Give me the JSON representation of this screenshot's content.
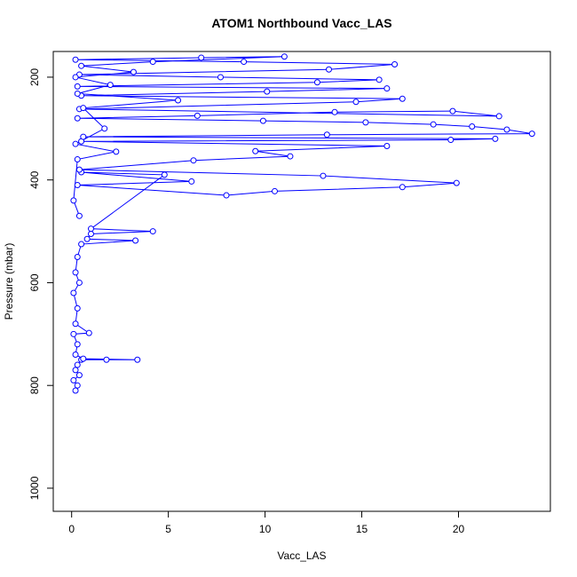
{
  "chart_data": {
    "type": "line",
    "title": "ATOM1 Northbound Vacc_LAS",
    "x_label": "Vacc_LAS",
    "y_label": "Pressure (mbar)",
    "xlim": [
      -0.95,
      24.75
    ],
    "ylim": [
      1045,
      150
    ],
    "xticks": [
      0,
      5,
      10,
      15,
      20
    ],
    "yticks": [
      200,
      400,
      600,
      800,
      1000
    ],
    "series": [
      {
        "color": "#0000ff",
        "x": [
          0.2,
          0.3,
          0.1,
          0.4,
          0.2,
          0.3,
          0.5,
          1.8,
          3.4,
          0.6,
          0.2,
          0.3,
          0.1,
          0.9,
          0.2,
          0.3,
          0.1,
          0.4,
          0.2,
          0.3,
          0.5,
          3.3,
          0.8,
          1.0,
          4.2,
          1.0,
          4.8,
          0.5,
          6.2,
          0.3,
          8.0,
          10.5,
          17.1,
          19.9,
          13.0,
          0.4,
          6.3,
          11.3,
          9.5,
          16.3,
          0.5,
          19.6,
          21.9,
          0.6,
          13.2,
          23.8,
          22.5,
          20.7,
          18.7,
          15.2,
          9.9,
          0.3,
          6.5,
          13.6,
          19.7,
          22.1,
          0.4,
          14.7,
          17.1,
          0.5,
          10.1,
          16.3,
          0.3,
          12.7,
          15.9,
          7.7,
          0.4,
          13.3,
          16.7,
          8.9,
          0.2,
          6.7,
          11.0,
          4.2,
          0.5,
          3.2,
          0.2,
          2.0,
          0.3,
          5.5,
          0.6,
          1.7,
          0.2,
          2.3,
          0.3,
          0.1,
          0.4
        ],
        "values": [
          810,
          800,
          790,
          780,
          770,
          760,
          750,
          750,
          750,
          748,
          740,
          720,
          700,
          698,
          680,
          650,
          620,
          600,
          580,
          550,
          525,
          518,
          515,
          505,
          500,
          495,
          390,
          385,
          403,
          410,
          430,
          422,
          414,
          406,
          392,
          380,
          362,
          354,
          344,
          334,
          325,
          322,
          320,
          316,
          312,
          310,
          302,
          296,
          292,
          288,
          285,
          280,
          275,
          268,
          266,
          276,
          262,
          248,
          242,
          236,
          228,
          222,
          218,
          210,
          205,
          200,
          195,
          185,
          175,
          170,
          166,
          162,
          160,
          170,
          178,
          190,
          200,
          215,
          232,
          245,
          260,
          300,
          330,
          345,
          360,
          440,
          470
        ]
      }
    ]
  }
}
